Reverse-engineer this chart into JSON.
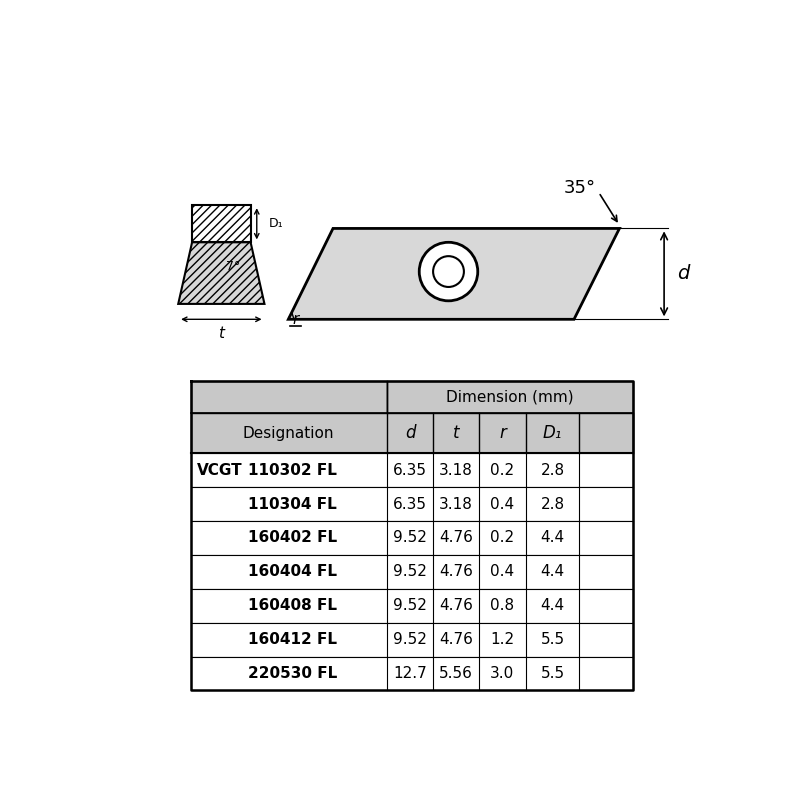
{
  "table_header_col1": "Designation",
  "table_header_dim": "Dimension (mm)",
  "table_col_headers": [
    "d",
    "t",
    "r",
    "D₁"
  ],
  "vcgt_label": "VCGT",
  "rows": [
    {
      "designation": "110302 FL",
      "d": "6.35",
      "t": "3.18",
      "r": "0.2",
      "D1": "2.8"
    },
    {
      "designation": "110304 FL",
      "d": "6.35",
      "t": "3.18",
      "r": "0.4",
      "D1": "2.8"
    },
    {
      "designation": "160402 FL",
      "d": "9.52",
      "t": "4.76",
      "r": "0.2",
      "D1": "4.4"
    },
    {
      "designation": "160404 FL",
      "d": "9.52",
      "t": "4.76",
      "r": "0.4",
      "D1": "4.4"
    },
    {
      "designation": "160408 FL",
      "d": "9.52",
      "t": "4.76",
      "r": "0.8",
      "D1": "4.4"
    },
    {
      "designation": "160412 FL",
      "d": "9.52",
      "t": "4.76",
      "r": "1.2",
      "D1": "5.5"
    },
    {
      "designation": "220530 FL",
      "d": "12.7",
      "t": "5.56",
      "r": "3.0",
      "D1": "5.5"
    }
  ],
  "angle_label": "35°",
  "d_label": "d",
  "D1_label": "D₁",
  "deg7_label": "7°",
  "t_label": "t",
  "r_label": "r",
  "header_bg": "#c8c8c8",
  "row_bg": "#ffffff",
  "border_color": "#000000"
}
